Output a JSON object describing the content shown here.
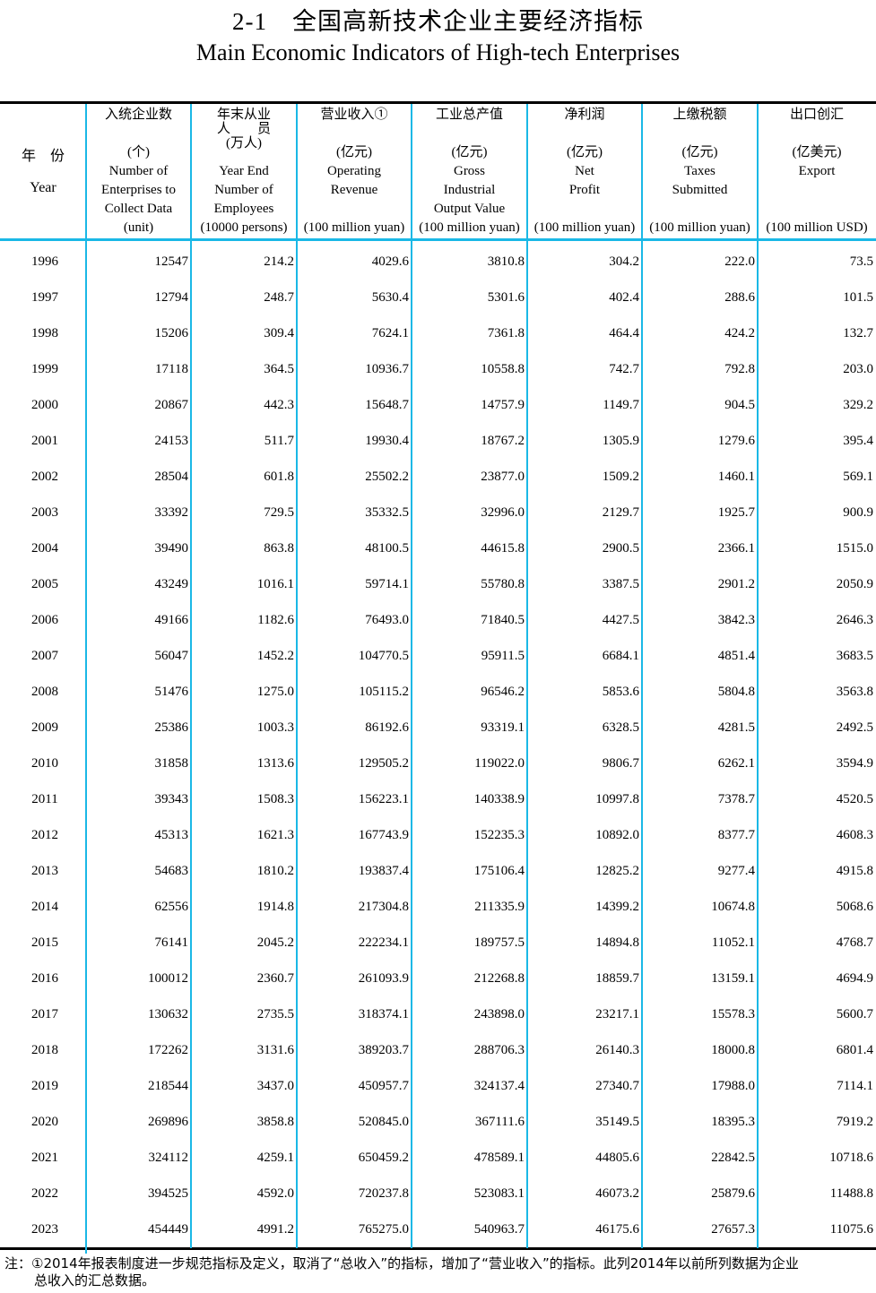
{
  "title_cn": "2-1　全国高新技术企业主要经济指标",
  "title_en": "Main Economic Indicators of High-tech Enterprises",
  "year_header": {
    "cn": "年　份",
    "en": "Year"
  },
  "columns": [
    {
      "cn": "入统企业数",
      "unit_cn": "(个)",
      "en": [
        "Number of",
        "Enterprises to",
        "Collect Data"
      ],
      "unit_en": "(unit)"
    },
    {
      "cn": "年末从业",
      "cn2": "人　　员",
      "unit_cn": "(万人)",
      "en": [
        "Year End",
        "Number of",
        "Employees"
      ],
      "unit_en": "(10000 persons)"
    },
    {
      "cn": "营业收入①",
      "unit_cn": "(亿元)",
      "en": [
        "Operating",
        "Revenue",
        ""
      ],
      "unit_en": "(100 million yuan)"
    },
    {
      "cn": "工业总产值",
      "unit_cn": "(亿元)",
      "en": [
        "Gross",
        "Industrial",
        "Output Value"
      ],
      "unit_en": "(100 million yuan)"
    },
    {
      "cn": "净利润",
      "unit_cn": "(亿元)",
      "en": [
        "Net",
        "Profit",
        ""
      ],
      "unit_en": "(100 million yuan)"
    },
    {
      "cn": "上缴税额",
      "unit_cn": "(亿元)",
      "en": [
        "Taxes",
        "Submitted",
        ""
      ],
      "unit_en": "(100 million yuan)"
    },
    {
      "cn": "出口创汇",
      "unit_cn": "(亿美元)",
      "en": [
        "Export",
        "",
        ""
      ],
      "unit_en": "(100 million USD)"
    }
  ],
  "rows": [
    [
      "1996",
      "12547",
      "214.2",
      "4029.6",
      "3810.8",
      "304.2",
      "222.0",
      "73.5"
    ],
    [
      "1997",
      "12794",
      "248.7",
      "5630.4",
      "5301.6",
      "402.4",
      "288.6",
      "101.5"
    ],
    [
      "1998",
      "15206",
      "309.4",
      "7624.1",
      "7361.8",
      "464.4",
      "424.2",
      "132.7"
    ],
    [
      "1999",
      "17118",
      "364.5",
      "10936.7",
      "10558.8",
      "742.7",
      "792.8",
      "203.0"
    ],
    [
      "2000",
      "20867",
      "442.3",
      "15648.7",
      "14757.9",
      "1149.7",
      "904.5",
      "329.2"
    ],
    [
      "2001",
      "24153",
      "511.7",
      "19930.4",
      "18767.2",
      "1305.9",
      "1279.6",
      "395.4"
    ],
    [
      "2002",
      "28504",
      "601.8",
      "25502.2",
      "23877.0",
      "1509.2",
      "1460.1",
      "569.1"
    ],
    [
      "2003",
      "33392",
      "729.5",
      "35332.5",
      "32996.0",
      "2129.7",
      "1925.7",
      "900.9"
    ],
    [
      "2004",
      "39490",
      "863.8",
      "48100.5",
      "44615.8",
      "2900.5",
      "2366.1",
      "1515.0"
    ],
    [
      "2005",
      "43249",
      "1016.1",
      "59714.1",
      "55780.8",
      "3387.5",
      "2901.2",
      "2050.9"
    ],
    [
      "2006",
      "49166",
      "1182.6",
      "76493.0",
      "71840.5",
      "4427.5",
      "3842.3",
      "2646.3"
    ],
    [
      "2007",
      "56047",
      "1452.2",
      "104770.5",
      "95911.5",
      "6684.1",
      "4851.4",
      "3683.5"
    ],
    [
      "2008",
      "51476",
      "1275.0",
      "105115.2",
      "96546.2",
      "5853.6",
      "5804.8",
      "3563.8"
    ],
    [
      "2009",
      "25386",
      "1003.3",
      "86192.6",
      "93319.1",
      "6328.5",
      "4281.5",
      "2492.5"
    ],
    [
      "2010",
      "31858",
      "1313.6",
      "129505.2",
      "119022.0",
      "9806.7",
      "6262.1",
      "3594.9"
    ],
    [
      "2011",
      "39343",
      "1508.3",
      "156223.1",
      "140338.9",
      "10997.8",
      "7378.7",
      "4520.5"
    ],
    [
      "2012",
      "45313",
      "1621.3",
      "167743.9",
      "152235.3",
      "10892.0",
      "8377.7",
      "4608.3"
    ],
    [
      "2013",
      "54683",
      "1810.2",
      "193837.4",
      "175106.4",
      "12825.2",
      "9277.4",
      "4915.8"
    ],
    [
      "2014",
      "62556",
      "1914.8",
      "217304.8",
      "211335.9",
      "14399.2",
      "10674.8",
      "5068.6"
    ],
    [
      "2015",
      "76141",
      "2045.2",
      "222234.1",
      "189757.5",
      "14894.8",
      "11052.1",
      "4768.7"
    ],
    [
      "2016",
      "100012",
      "2360.7",
      "261093.9",
      "212268.8",
      "18859.7",
      "13159.1",
      "4694.9"
    ],
    [
      "2017",
      "130632",
      "2735.5",
      "318374.1",
      "243898.0",
      "23217.1",
      "15578.3",
      "5600.7"
    ],
    [
      "2018",
      "172262",
      "3131.6",
      "389203.7",
      "288706.3",
      "26140.3",
      "18000.8",
      "6801.4"
    ],
    [
      "2019",
      "218544",
      "3437.0",
      "450957.7",
      "324137.4",
      "27340.7",
      "17988.0",
      "7114.1"
    ],
    [
      "2020",
      "269896",
      "3858.8",
      "520845.0",
      "367111.6",
      "35149.5",
      "18395.3",
      "7919.2"
    ],
    [
      "2021",
      "324112",
      "4259.1",
      "650459.2",
      "478589.1",
      "44805.6",
      "22842.5",
      "10718.6"
    ],
    [
      "2022",
      "394525",
      "4592.0",
      "720237.8",
      "523083.1",
      "46073.2",
      "25879.6",
      "11488.8"
    ],
    [
      "2023",
      "454449",
      "4991.2",
      "765275.0",
      "540963.7",
      "46175.6",
      "27657.3",
      "11075.6"
    ]
  ],
  "note": {
    "line1": "注：①2014年报表制度进一步规范指标及定义，取消了“总收入”的指标，增加了“营业收入”的指标。此列2014年以前所列数据为企业",
    "line2": "总收入的汇总数据。"
  }
}
